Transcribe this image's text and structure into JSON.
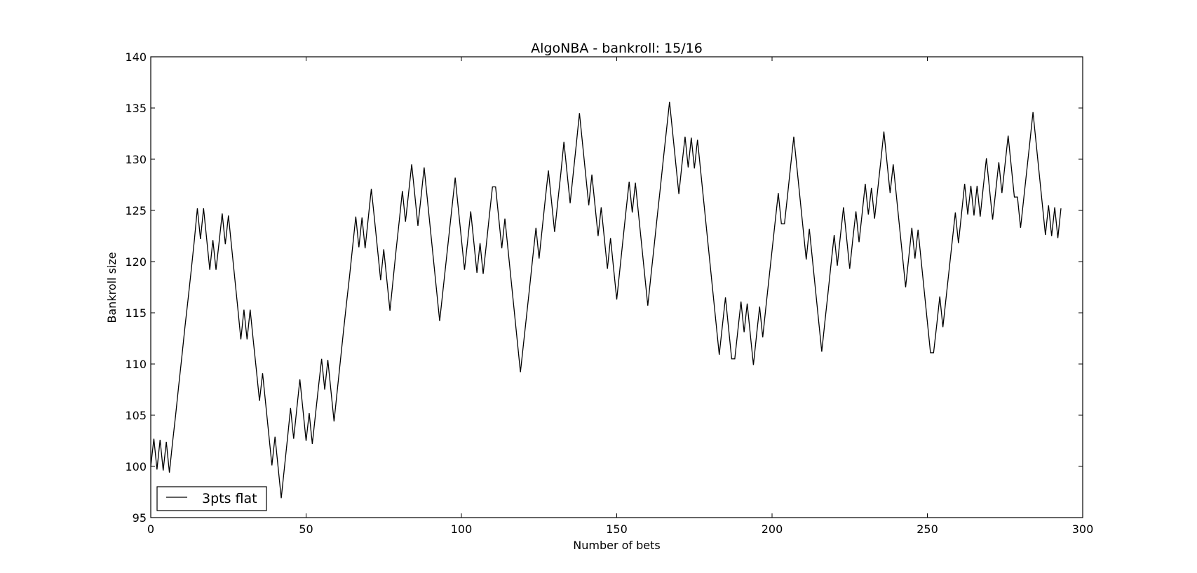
{
  "chart_data": {
    "type": "line",
    "title": "AlgoNBA - bankroll: 15/16",
    "xlabel": "Number of bets",
    "ylabel": "Bankroll size",
    "xlim": [
      0,
      300
    ],
    "ylim": [
      95,
      140
    ],
    "xticks": [
      0,
      50,
      100,
      150,
      200,
      250,
      300
    ],
    "xtick_labels": [
      "0",
      "50",
      "100",
      "150",
      "200",
      "250",
      "300"
    ],
    "yticks": [
      95,
      100,
      105,
      110,
      115,
      120,
      125,
      130,
      135,
      140
    ],
    "ytick_labels": [
      "95",
      "100",
      "105",
      "110",
      "115",
      "120",
      "125",
      "130",
      "135",
      "140"
    ],
    "grid": false,
    "legend_position": "lower-left",
    "series": [
      {
        "name": "3pts flat",
        "color": "#000000",
        "x": [
          0,
          1,
          2,
          3,
          4,
          5,
          6,
          7,
          8,
          9,
          10,
          11,
          12,
          13,
          14,
          15,
          16,
          17,
          18,
          19,
          20,
          21,
          22,
          23,
          24,
          25,
          26,
          27,
          28,
          29,
          30,
          31,
          32,
          33,
          34,
          35,
          36,
          37,
          38,
          39,
          40,
          41,
          42,
          43,
          44,
          45,
          46,
          47,
          48,
          49,
          50,
          51,
          52,
          53,
          54,
          55,
          56,
          57,
          58,
          59,
          60,
          61,
          62,
          63,
          64,
          65,
          66,
          67,
          68,
          69,
          70,
          71,
          72,
          73,
          74,
          75,
          76,
          77,
          78,
          79,
          80,
          81,
          82,
          83,
          84,
          85,
          86,
          87,
          88,
          89,
          90,
          91,
          92,
          93,
          94,
          95,
          96,
          97,
          98,
          99,
          100,
          101,
          102,
          103,
          104,
          105,
          106,
          107,
          108,
          109,
          110,
          111,
          112,
          113,
          114,
          115,
          116,
          117,
          118,
          119,
          120,
          121,
          122,
          123,
          124,
          125,
          126,
          127,
          128,
          129,
          130,
          131,
          132,
          133,
          134,
          135,
          136,
          137,
          138,
          139,
          140,
          141,
          142,
          143,
          144,
          145,
          146,
          147,
          148,
          149,
          150,
          151,
          152,
          153,
          154,
          155,
          156,
          157,
          158,
          159,
          160,
          161,
          162,
          163,
          164,
          165,
          166,
          167,
          168,
          169,
          170,
          171,
          172,
          173,
          174,
          175,
          176,
          177,
          178,
          179,
          180,
          181,
          182,
          183,
          184,
          185,
          186,
          187,
          188,
          189,
          190,
          191,
          192,
          193,
          194,
          195,
          196,
          197,
          198,
          199,
          200,
          201,
          202,
          203,
          204,
          205,
          206,
          207,
          208,
          209,
          210,
          211,
          212,
          213,
          214,
          215,
          216,
          217,
          218,
          219,
          220,
          221,
          222,
          223,
          224,
          225,
          226,
          227,
          228,
          229,
          230,
          231,
          232,
          233,
          234,
          235,
          236,
          237,
          238,
          239,
          240,
          241,
          242,
          243,
          244,
          245,
          246,
          247,
          248,
          249,
          250,
          251,
          252,
          253,
          254,
          255,
          256,
          257,
          258,
          259,
          260,
          261,
          262,
          263,
          264,
          265,
          266,
          267,
          268,
          269,
          270,
          271,
          272,
          273,
          274,
          275,
          276,
          277,
          278,
          279,
          280,
          281,
          282,
          283,
          284,
          285,
          286,
          287,
          288,
          289,
          290,
          291,
          292,
          293
        ],
        "values": [
          100.0,
          102.7,
          99.7,
          102.6,
          99.6,
          102.4,
          99.4,
          102.3,
          105.0,
          107.9,
          110.7,
          113.6,
          116.3,
          119.1,
          122.0,
          125.2,
          122.2,
          125.2,
          122.2,
          119.2,
          122.1,
          119.2,
          121.9,
          124.7,
          121.7,
          124.5,
          121.5,
          118.5,
          115.5,
          112.4,
          115.3,
          112.4,
          115.3,
          112.3,
          109.4,
          106.4,
          109.1,
          106.1,
          103.1,
          100.1,
          102.9,
          99.9,
          96.9,
          99.8,
          102.7,
          105.7,
          102.7,
          105.6,
          108.5,
          105.5,
          102.5,
          105.2,
          102.2,
          105.0,
          107.8,
          110.5,
          107.5,
          110.4,
          107.4,
          104.4,
          107.3,
          110.2,
          113.1,
          115.9,
          118.6,
          121.5,
          124.4,
          121.4,
          124.3,
          121.3,
          124.2,
          127.1,
          124.2,
          121.2,
          118.2,
          121.2,
          118.2,
          115.2,
          118.2,
          121.2,
          124.0,
          126.9,
          123.9,
          126.7,
          129.5,
          126.5,
          123.5,
          126.3,
          129.2,
          126.2,
          123.2,
          120.2,
          117.2,
          114.2,
          117.0,
          119.8,
          122.6,
          125.4,
          128.2,
          125.2,
          122.2,
          119.2,
          122.0,
          124.9,
          121.9,
          118.9,
          121.8,
          118.8,
          121.6,
          124.5,
          127.3,
          127.3,
          124.3,
          121.3,
          124.2,
          121.2,
          118.2,
          115.2,
          112.2,
          109.2,
          112.0,
          114.8,
          117.6,
          120.5,
          123.3,
          120.3,
          123.2,
          126.1,
          128.9,
          125.9,
          122.9,
          125.8,
          128.6,
          131.7,
          128.7,
          125.7,
          128.6,
          131.5,
          134.5,
          131.5,
          128.5,
          125.5,
          128.5,
          125.5,
          122.5,
          125.3,
          122.3,
          119.3,
          122.3,
          119.3,
          116.3,
          119.2,
          122.1,
          125.0,
          127.8,
          124.8,
          127.7,
          124.7,
          121.7,
          118.7,
          115.7,
          118.6,
          121.4,
          124.3,
          127.1,
          130.0,
          132.8,
          135.6,
          132.6,
          129.6,
          126.6,
          129.5,
          132.2,
          129.2,
          132.1,
          129.1,
          131.9,
          128.9,
          125.9,
          122.9,
          119.9,
          116.9,
          113.9,
          110.9,
          113.7,
          116.5,
          113.5,
          110.5,
          110.5,
          113.3,
          116.1,
          113.1,
          115.9,
          112.9,
          109.9,
          112.8,
          115.6,
          112.6,
          115.5,
          118.3,
          121.1,
          123.9,
          126.7,
          123.7,
          123.7,
          126.5,
          129.4,
          132.2,
          129.2,
          126.2,
          123.2,
          120.2,
          123.2,
          120.2,
          117.2,
          114.2,
          111.2,
          114.1,
          116.9,
          119.8,
          122.6,
          119.6,
          122.5,
          125.3,
          122.3,
          119.3,
          122.2,
          124.9,
          121.9,
          124.7,
          127.6,
          124.6,
          127.2,
          124.2,
          127.0,
          129.8,
          132.7,
          129.7,
          126.7,
          129.5,
          126.5,
          123.5,
          120.5,
          117.5,
          120.4,
          123.3,
          120.3,
          123.1,
          120.1,
          117.1,
          114.1,
          111.1,
          111.1,
          113.8,
          116.6,
          113.6,
          116.4,
          119.2,
          122.0,
          124.8,
          121.8,
          124.7,
          127.6,
          124.6,
          127.4,
          124.5,
          127.4,
          124.4,
          127.3,
          130.1,
          127.1,
          124.1,
          126.9,
          129.7,
          126.7,
          129.5,
          132.3,
          129.3,
          126.3,
          126.3,
          123.3,
          126.1,
          128.9,
          131.7,
          134.6,
          131.6,
          128.6,
          125.6,
          122.6,
          125.5,
          122.5,
          125.3,
          122.3,
          125.2
        ]
      }
    ]
  }
}
